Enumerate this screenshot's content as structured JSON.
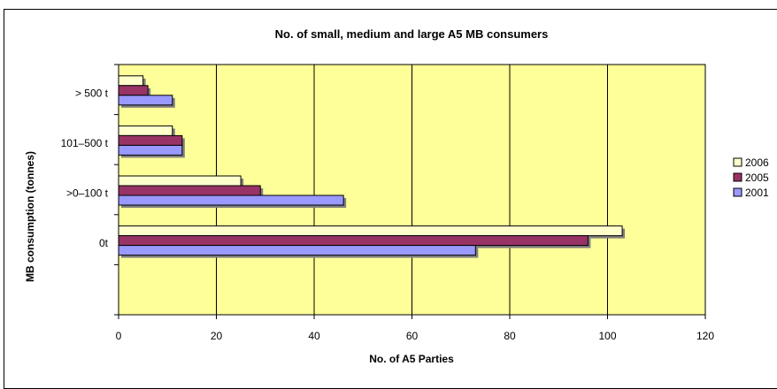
{
  "chart_data": {
    "type": "bar",
    "orientation": "horizontal",
    "title": "No. of small, medium and large A5 MB consumers",
    "xlabel": "No. of A5 Parties",
    "ylabel": "MB consumption (tonnes)",
    "xlim": [
      0,
      120
    ],
    "xticks": [
      "0",
      "20",
      "40",
      "60",
      "80",
      "100",
      "120"
    ],
    "categories": [
      "> 500 t",
      "101–500 t",
      ">0–100 t",
      "0t"
    ],
    "series": [
      {
        "name": "2006",
        "color": "#FFFFCC",
        "values": [
          5,
          11,
          25,
          103
        ]
      },
      {
        "name": "2005",
        "color": "#993366",
        "values": [
          6,
          13,
          29,
          96
        ]
      },
      {
        "name": "2001",
        "color": "#9999FF",
        "values": [
          11,
          13,
          46,
          73
        ]
      }
    ],
    "plot_background": "#FFFF99",
    "grid": "vertical",
    "legend_position": "right"
  }
}
